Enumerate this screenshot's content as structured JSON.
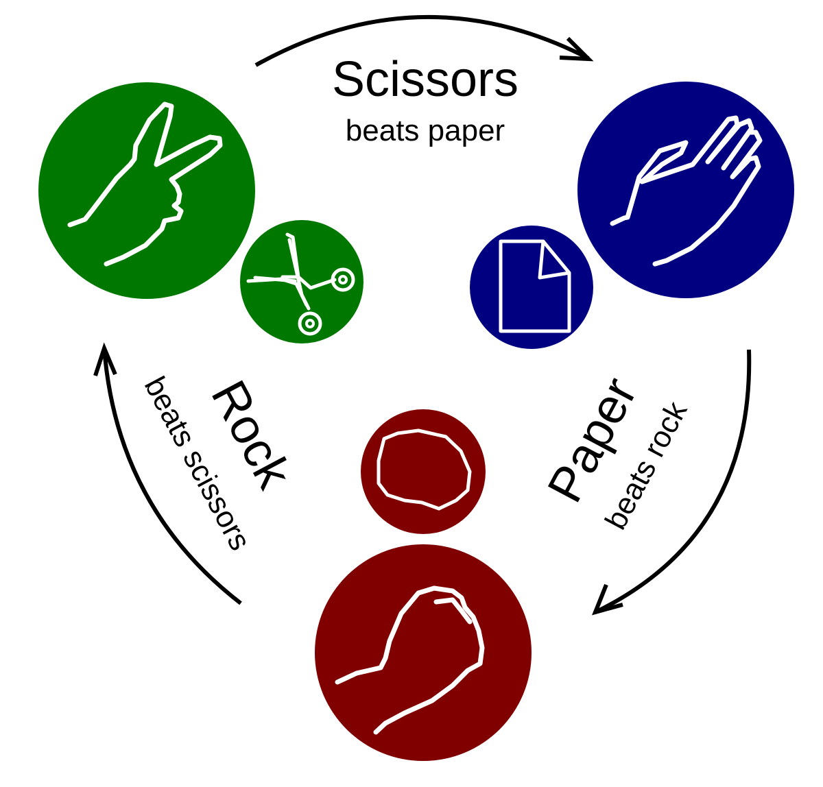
{
  "colors": {
    "scissors": "#007800",
    "paper": "#000080",
    "rock": "#800000",
    "icon": "#ffffff",
    "text": "#000000",
    "arrow": "#000000"
  },
  "scissors": {
    "title": "Scissors",
    "subtitle": "beats paper",
    "hand_icon": "v-sign-hand-icon",
    "object_icon": "scissors-icon"
  },
  "paper": {
    "title": "Paper",
    "subtitle": "beats rock",
    "hand_icon": "open-hand-icon",
    "object_icon": "document-icon"
  },
  "rock": {
    "title": "Rock",
    "subtitle": "beats scissors",
    "hand_icon": "fist-icon",
    "object_icon": "stone-icon"
  }
}
